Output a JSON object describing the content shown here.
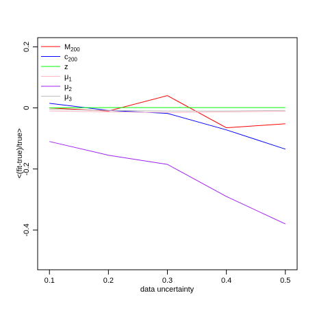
{
  "chart_data": {
    "type": "line",
    "title": "",
    "xlabel": "data uncertainty",
    "ylabel": "<(fit-true)/true>",
    "xlim": [
      0.08,
      0.52
    ],
    "ylim": [
      -0.53,
      0.23
    ],
    "x_ticks": [
      0.1,
      0.2,
      0.3,
      0.4,
      0.5
    ],
    "x_tick_labels": [
      "0.1",
      "0.2",
      "0.3",
      "0.4",
      "0.5"
    ],
    "y_ticks": [
      -0.4,
      -0.2,
      0,
      0.2
    ],
    "y_tick_labels": [
      "-0.4",
      "-0.2",
      "0",
      "0.2"
    ],
    "grid": false,
    "legend_position": "top-left",
    "x": [
      0.1,
      0.2,
      0.3,
      0.4,
      0.5
    ],
    "series": [
      {
        "name": "M",
        "sub": "200",
        "color": "#ff0000",
        "values": [
          0.0,
          -0.01,
          0.04,
          -0.065,
          -0.052
        ]
      },
      {
        "name": "c",
        "sub": "200",
        "color": "#0000ff",
        "values": [
          0.015,
          -0.008,
          -0.018,
          -0.072,
          -0.135
        ]
      },
      {
        "name": "z",
        "sub": "",
        "color": "#00ff00",
        "values": [
          0.0,
          0.001,
          0.001,
          0.001,
          0.001
        ]
      },
      {
        "name": "μ",
        "sub": "1",
        "color": "#ffb6c1",
        "values": [
          -0.01,
          -0.013,
          -0.015,
          -0.013,
          -0.011
        ]
      },
      {
        "name": "μ",
        "sub": "2",
        "color": "#a020f0",
        "values": [
          -0.11,
          -0.155,
          -0.185,
          -0.29,
          -0.38
        ]
      },
      {
        "name": "μ",
        "sub": "3",
        "color": "#bebebe",
        "values": [
          -0.005,
          -0.008,
          -0.01,
          -0.01,
          -0.008
        ]
      }
    ]
  }
}
